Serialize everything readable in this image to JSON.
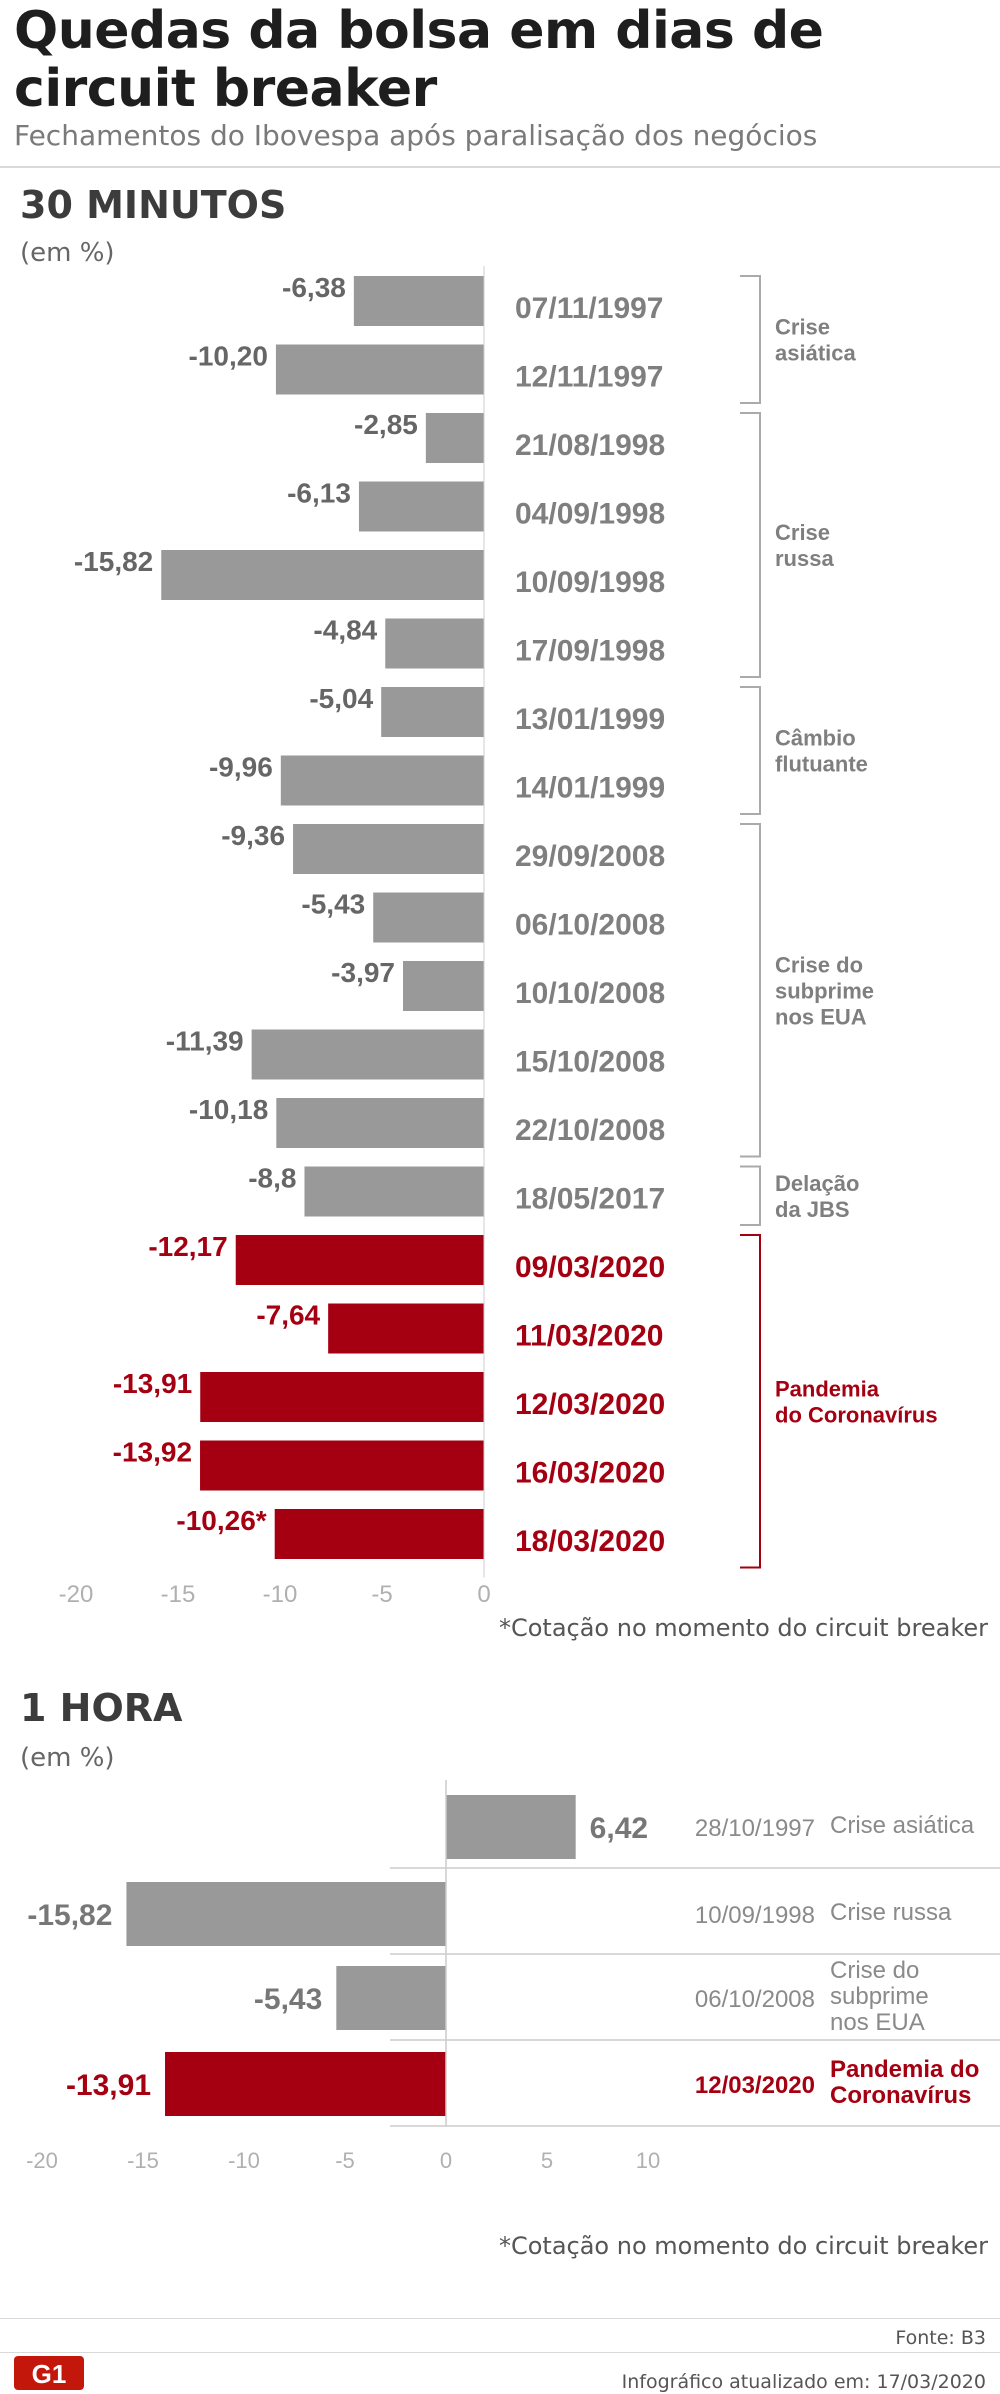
{
  "header": {
    "title": "Quedas da bolsa em dias de circuit breaker",
    "subtitle": "Fechamentos do Ibovespa após paralisação dos negócios"
  },
  "colors": {
    "gray": "#999999",
    "red": "#a50011",
    "text_gray": "#7a7a7a"
  },
  "chart_data": [
    {
      "type": "bar",
      "orientation": "horizontal",
      "title": "30 MINUTOS",
      "unit_label": "(em %)",
      "xlim": [
        -20,
        0
      ],
      "x_ticks": [
        "-20",
        "-15",
        "-10",
        "-5",
        "0"
      ],
      "x_tick_values": [
        -20,
        -15,
        -10,
        -5,
        0
      ],
      "categories": [
        "07/11/1997",
        "12/11/1997",
        "21/08/1998",
        "04/09/1998",
        "10/09/1998",
        "17/09/1998",
        "13/01/1999",
        "14/01/1999",
        "29/09/2008",
        "06/10/2008",
        "10/10/2008",
        "15/10/2008",
        "22/10/2008",
        "18/05/2017",
        "09/03/2020",
        "11/03/2020",
        "12/03/2020",
        "16/03/2020",
        "18/03/2020"
      ],
      "values": [
        -6.38,
        -10.2,
        -2.85,
        -6.13,
        -15.82,
        -4.84,
        -5.04,
        -9.96,
        -9.36,
        -5.43,
        -3.97,
        -11.39,
        -10.18,
        -8.8,
        -12.17,
        -7.64,
        -13.91,
        -13.92,
        -10.26
      ],
      "value_labels": [
        "-6,38",
        "-10,20",
        "-2,85",
        "-6,13",
        "-15,82",
        "-4,84",
        "-5,04",
        "-9,96",
        "-9,36",
        "-5,43",
        "-3,97",
        "-11,39",
        "-10,18",
        "-8,8",
        "-12,17",
        "-7,64",
        "-13,91",
        "-13,92",
        "-10,26*"
      ],
      "highlight": [
        false,
        false,
        false,
        false,
        false,
        false,
        false,
        false,
        false,
        false,
        false,
        false,
        false,
        false,
        true,
        true,
        true,
        true,
        true
      ],
      "groups": [
        {
          "label": "Crise asiática",
          "start": 0,
          "end": 1,
          "highlight": false
        },
        {
          "label": "Crise russa",
          "start": 2,
          "end": 5,
          "highlight": false
        },
        {
          "label": "Câmbio flutuante",
          "start": 6,
          "end": 7,
          "highlight": false
        },
        {
          "label": "Crise do subprime nos EUA",
          "start": 8,
          "end": 12,
          "highlight": false
        },
        {
          "label": "Delação da JBS",
          "start": 13,
          "end": 13,
          "highlight": false
        },
        {
          "label": "Pandemia do Coronavírus",
          "start": 14,
          "end": 18,
          "highlight": true
        }
      ],
      "note": "*Cotação no momento do circuit breaker"
    },
    {
      "type": "bar",
      "orientation": "horizontal",
      "title": "1 HORA",
      "unit_label": "(em %)",
      "xlim": [
        -20,
        10
      ],
      "x_ticks": [
        "-20",
        "-15",
        "-10",
        "-5",
        "0",
        "5",
        "10"
      ],
      "x_tick_values": [
        -20,
        -15,
        -10,
        -5,
        0,
        5,
        10
      ],
      "categories": [
        "28/10/1997",
        "10/09/1998",
        "06/10/2008",
        "12/03/2020"
      ],
      "values": [
        6.42,
        -15.82,
        -5.43,
        -13.91
      ],
      "value_labels": [
        "6,42",
        "-15,82",
        "-5,43",
        "-13,91"
      ],
      "highlight": [
        false,
        false,
        false,
        true
      ],
      "events": [
        "Crise asiática",
        "Crise russa",
        "Crise do subprime nos EUA",
        "Pandemia do Coronavírus"
      ],
      "note": "*Cotação no momento do circuit breaker"
    }
  ],
  "footer": {
    "source": "Fonte: B3",
    "updated": "Infográfico atualizado em: 17/03/2020",
    "logo": "G1"
  }
}
